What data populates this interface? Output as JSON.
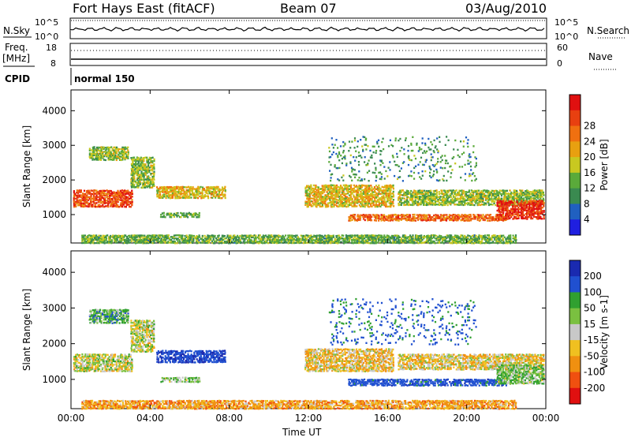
{
  "header": {
    "station": "Fort Hays East (fitACF)",
    "beam": "Beam 07",
    "date": "03/Aug/2010"
  },
  "top_panels": {
    "nsky": {
      "label": "N.Sky",
      "tick_top": "10^5",
      "tick_bottom": "10^0"
    },
    "nsearch": {
      "label": "N.Search",
      "tick_top": "10^5",
      "tick_bottom": "10^0"
    },
    "freq": {
      "label": "Freq.",
      "unit": "[MHz]",
      "tick_top": "18",
      "tick_bottom": "8"
    },
    "nave": {
      "label": "Nave",
      "tick_top": "60",
      "tick_bottom": "0"
    },
    "cpid": {
      "label": "CPID",
      "value": "normal 150"
    }
  },
  "chart_data": [
    {
      "type": "heatmap",
      "title": "",
      "xlabel": "Time UT",
      "ylabel": "Slant Range [km]",
      "xlim": [
        0,
        24
      ],
      "ylim": [
        180,
        4600
      ],
      "xticks": [
        "00:00",
        "04:00",
        "08:00",
        "12:00",
        "16:00",
        "20:00",
        "00:00"
      ],
      "yticks": [
        1000,
        2000,
        3000,
        4000
      ],
      "colorbar": {
        "label": "Power [dB]",
        "ticks": [
          "4",
          "8",
          "12",
          "16",
          "20",
          "24",
          "28"
        ],
        "colors": [
          "#1f1fe0",
          "#2060c0",
          "#3a8a50",
          "#5aaa3a",
          "#c8c820",
          "#e8a010",
          "#f07010",
          "#e84010",
          "#e01010"
        ]
      },
      "regions": [
        {
          "t": [
            0.1,
            3.1
          ],
          "r": [
            1250,
            1750
          ],
          "value": 26
        },
        {
          "t": [
            0.9,
            2.9
          ],
          "r": [
            2600,
            3000
          ],
          "value": 14
        },
        {
          "t": [
            3.0,
            4.2
          ],
          "r": [
            1800,
            2700
          ],
          "value": 14
        },
        {
          "t": [
            4.3,
            7.8
          ],
          "r": [
            1500,
            1850
          ],
          "value": 18
        },
        {
          "t": [
            4.5,
            6.5
          ],
          "r": [
            950,
            1100
          ],
          "value": 12
        },
        {
          "t": [
            0.5,
            22.5
          ],
          "r": [
            200,
            450
          ],
          "value": 12
        },
        {
          "t": [
            11.8,
            16.3
          ],
          "r": [
            1250,
            1900
          ],
          "value": 18
        },
        {
          "t": [
            14.0,
            22.0
          ],
          "r": [
            850,
            1050
          ],
          "value": 24
        },
        {
          "t": [
            16.5,
            23.9
          ],
          "r": [
            1300,
            1750
          ],
          "value": 14
        },
        {
          "t": [
            21.5,
            23.9
          ],
          "r": [
            900,
            1450
          ],
          "value": 28
        },
        {
          "t": [
            13.0,
            20.5
          ],
          "r": [
            2000,
            3300
          ],
          "value": 10
        }
      ]
    },
    {
      "type": "heatmap",
      "title": "",
      "xlabel": "Time UT",
      "ylabel": "Slant Range [km]",
      "xlim": [
        0,
        24
      ],
      "ylim": [
        180,
        4600
      ],
      "xticks": [
        "00:00",
        "04:00",
        "08:00",
        "12:00",
        "16:00",
        "20:00",
        "00:00"
      ],
      "yticks": [
        1000,
        2000,
        3000,
        4000
      ],
      "colorbar": {
        "label": "Velocity [m s-1]",
        "ticks": [
          "200",
          "100",
          "50",
          "15",
          "-15",
          "-50",
          "-100",
          "-200"
        ],
        "colors": [
          "#1a2ab0",
          "#2050d0",
          "#30a030",
          "#7ac040",
          "#c8c8c8",
          "#f0c020",
          "#f09010",
          "#f05010",
          "#e01010"
        ]
      },
      "regions": [
        {
          "t": [
            0.1,
            3.1
          ],
          "r": [
            1250,
            1750
          ],
          "value": 0
        },
        {
          "t": [
            0.9,
            2.9
          ],
          "r": [
            2600,
            3000
          ],
          "value": 60
        },
        {
          "t": [
            3.0,
            4.2
          ],
          "r": [
            1800,
            2700
          ],
          "value": 0
        },
        {
          "t": [
            4.3,
            7.8
          ],
          "r": [
            1500,
            1850
          ],
          "value": 180
        },
        {
          "t": [
            4.5,
            6.5
          ],
          "r": [
            950,
            1100
          ],
          "value": 40
        },
        {
          "t": [
            0.5,
            22.5
          ],
          "r": [
            200,
            450
          ],
          "value": -60
        },
        {
          "t": [
            11.8,
            16.3
          ],
          "r": [
            1250,
            1900
          ],
          "value": -30
        },
        {
          "t": [
            14.0,
            22.0
          ],
          "r": [
            850,
            1050
          ],
          "value": 150
        },
        {
          "t": [
            16.5,
            23.9
          ],
          "r": [
            1300,
            1750
          ],
          "value": -20
        },
        {
          "t": [
            21.5,
            23.9
          ],
          "r": [
            900,
            1450
          ],
          "value": 40
        },
        {
          "t": [
            13.0,
            20.5
          ],
          "r": [
            2000,
            3300
          ],
          "value": 120
        }
      ]
    }
  ]
}
